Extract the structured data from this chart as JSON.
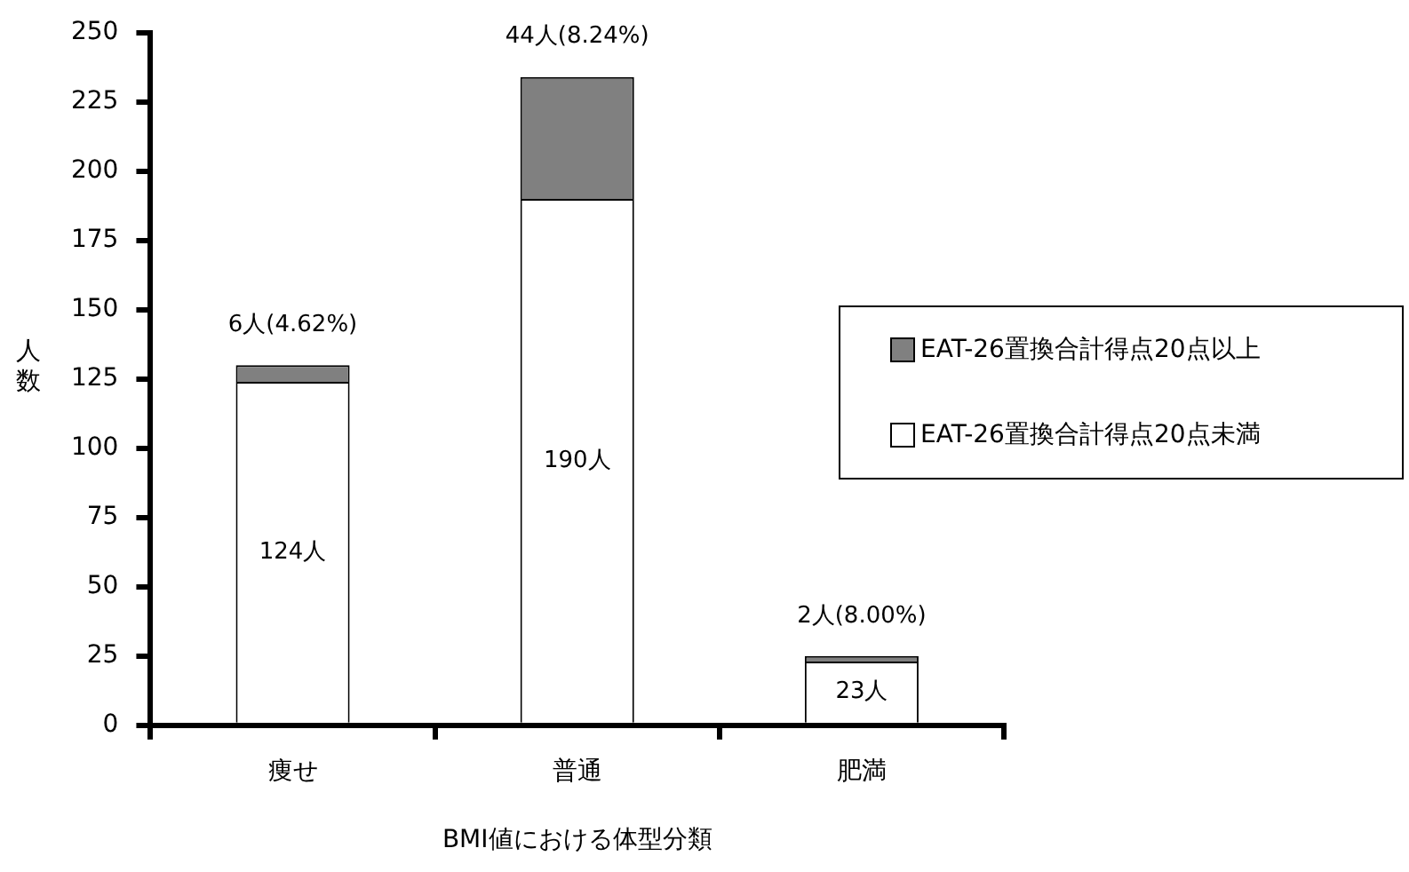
{
  "chart_data": {
    "type": "bar",
    "stacked": true,
    "xlabel": "BMI値における体型分類",
    "ylabel": "人数",
    "categories": [
      "痩せ",
      "普通",
      "肥満"
    ],
    "series": [
      {
        "name": "EAT-26置換合計得点20点未満",
        "color": "#ffffff",
        "values": [
          124,
          190,
          23
        ],
        "value_labels": [
          "124人",
          "190人",
          "23人"
        ]
      },
      {
        "name": "EAT-26置換合計得点20点以上",
        "color": "#808080",
        "values": [
          6,
          44,
          2
        ],
        "value_labels": [
          "6人(4.62%)",
          "44人(8.24%)",
          "2人(8.00%)"
        ]
      }
    ],
    "ylim": [
      0,
      250
    ],
    "yticks": [
      0,
      25,
      50,
      75,
      100,
      125,
      150,
      175,
      200,
      225,
      250
    ],
    "grid": false,
    "legend": "right"
  }
}
